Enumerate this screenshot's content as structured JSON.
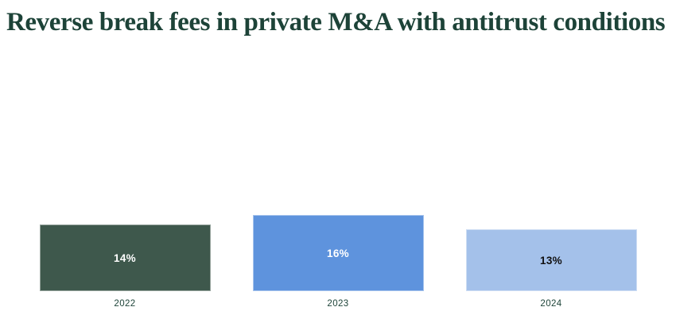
{
  "page": {
    "background": "#ffffff"
  },
  "chart_data": {
    "type": "bar",
    "title": "Reverse break fees in private M&A with antitrust conditions",
    "categories": [
      "2022",
      "2023",
      "2024"
    ],
    "values": [
      14,
      16,
      13
    ],
    "value_labels": [
      "14%",
      "16%",
      "13%"
    ],
    "unit": "percent",
    "xlabel": "",
    "ylabel": "",
    "ylim": [
      0,
      16
    ],
    "grid": false,
    "legend": false,
    "bar_colors": [
      "#3e584c",
      "#5e93dd",
      "#a4c1ea"
    ],
    "value_label_colors": [
      "#ffffff",
      "#ffffff",
      "#111111"
    ],
    "title_color": "#1d4338",
    "axis_label_color": "#1d4338"
  }
}
